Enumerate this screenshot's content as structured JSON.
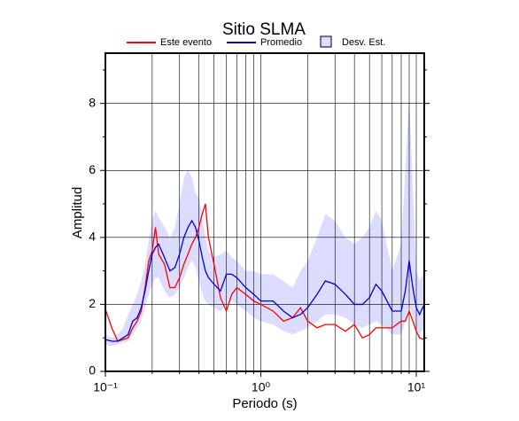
{
  "chart_data": {
    "type": "line",
    "title": "Sitio SLMA",
    "x_label": "Periodo (s)",
    "y_label": "Amplitud",
    "x": [
      0.1,
      0.11,
      0.12,
      0.13,
      0.14,
      0.15,
      0.16,
      0.17,
      0.18,
      0.19,
      0.2,
      0.21,
      0.22,
      0.24,
      0.26,
      0.28,
      0.3,
      0.32,
      0.34,
      0.36,
      0.38,
      0.4,
      0.42,
      0.44,
      0.46,
      0.5,
      0.55,
      0.6,
      0.65,
      0.7,
      0.8,
      0.9,
      1.0,
      1.2,
      1.4,
      1.6,
      1.8,
      2.0,
      2.3,
      2.6,
      3.0,
      3.5,
      4.0,
      4.5,
      5.0,
      5.5,
      6.0,
      7.0,
      8.0,
      8.5,
      9.0,
      9.5,
      10,
      10.5,
      11.25
    ],
    "series": [
      {
        "name": "Este evento",
        "color": "#ff0000",
        "values": [
          1.85,
          1.3,
          0.9,
          0.95,
          1.0,
          1.3,
          1.5,
          1.8,
          2.5,
          3.3,
          3.6,
          4.3,
          3.5,
          3.2,
          2.5,
          2.5,
          2.8,
          3.2,
          3.5,
          3.8,
          4.0,
          4.3,
          4.7,
          5.0,
          4.0,
          3.2,
          2.2,
          1.8,
          2.3,
          2.5,
          2.3,
          2.1,
          2.0,
          1.8,
          1.5,
          1.6,
          1.9,
          1.5,
          1.3,
          1.4,
          1.4,
          1.2,
          1.4,
          1.0,
          1.1,
          1.3,
          1.3,
          1.3,
          1.5,
          1.5,
          1.8,
          1.5,
          1.2,
          1.0,
          0.95
        ]
      },
      {
        "name": "Promedio",
        "color": "#0000dd",
        "values": [
          0.95,
          0.9,
          0.9,
          1.0,
          1.1,
          1.5,
          1.6,
          1.9,
          2.4,
          3.0,
          3.5,
          3.7,
          3.8,
          3.4,
          3.0,
          3.1,
          3.5,
          4.0,
          4.3,
          4.5,
          4.3,
          3.9,
          3.4,
          3.0,
          2.8,
          2.6,
          2.4,
          2.9,
          2.9,
          2.8,
          2.5,
          2.3,
          2.1,
          2.1,
          1.8,
          1.6,
          1.7,
          1.9,
          2.3,
          2.7,
          2.6,
          2.3,
          2.0,
          2.0,
          2.2,
          2.6,
          2.4,
          1.8,
          1.8,
          2.4,
          3.3,
          2.5,
          1.9,
          1.7,
          2.0
        ]
      },
      {
        "name": "Desv. Est.",
        "type": "band",
        "color": "#dcdcff",
        "lower": [
          0.8,
          0.75,
          0.8,
          0.85,
          0.9,
          1.1,
          1.3,
          1.5,
          1.9,
          2.3,
          2.6,
          2.8,
          2.8,
          2.4,
          2.2,
          2.3,
          2.5,
          2.8,
          3.1,
          3.3,
          3.1,
          2.7,
          2.3,
          2.1,
          2.0,
          1.9,
          1.8,
          2.0,
          2.1,
          2.0,
          1.8,
          1.6,
          1.5,
          1.4,
          1.2,
          1.1,
          1.2,
          1.3,
          1.5,
          1.7,
          1.7,
          1.6,
          1.4,
          1.3,
          1.4,
          1.5,
          1.4,
          1.1,
          1.1,
          1.5,
          2.0,
          1.6,
          1.2,
          1.1,
          1.3
        ],
        "upper": [
          1.1,
          1.0,
          1.1,
          1.3,
          1.7,
          2.0,
          2.3,
          2.7,
          3.2,
          3.9,
          4.5,
          4.8,
          4.6,
          4.3,
          4.0,
          4.3,
          5.0,
          5.8,
          6.0,
          5.8,
          5.3,
          5.2,
          4.6,
          4.0,
          3.6,
          3.4,
          3.5,
          3.6,
          3.4,
          3.3,
          3.0,
          3.0,
          2.9,
          2.9,
          2.7,
          2.5,
          3.0,
          3.3,
          4.0,
          4.7,
          4.5,
          4.0,
          3.8,
          4.0,
          4.3,
          4.8,
          4.5,
          3.0,
          3.8,
          6.0,
          8.2,
          5.5,
          3.0,
          2.7,
          3.0
        ]
      }
    ],
    "log_x": true,
    "xlim": [
      0.1,
      11.25
    ],
    "ylim": [
      0,
      9.5
    ],
    "xticks": [
      {
        "value": 0.1,
        "label": "10⁻¹"
      },
      {
        "value": 1,
        "label": "10⁰"
      },
      {
        "value": 10,
        "label": "10¹"
      }
    ],
    "xminorticks": [
      0.2,
      0.3,
      0.4,
      0.5,
      0.6,
      0.7,
      0.8,
      0.9,
      2,
      3,
      4,
      5,
      6,
      7,
      8,
      9
    ],
    "yticks": [
      0,
      2,
      4,
      6,
      8
    ],
    "yminorticks": [
      1,
      3,
      5,
      7,
      9
    ],
    "grid": true
  }
}
